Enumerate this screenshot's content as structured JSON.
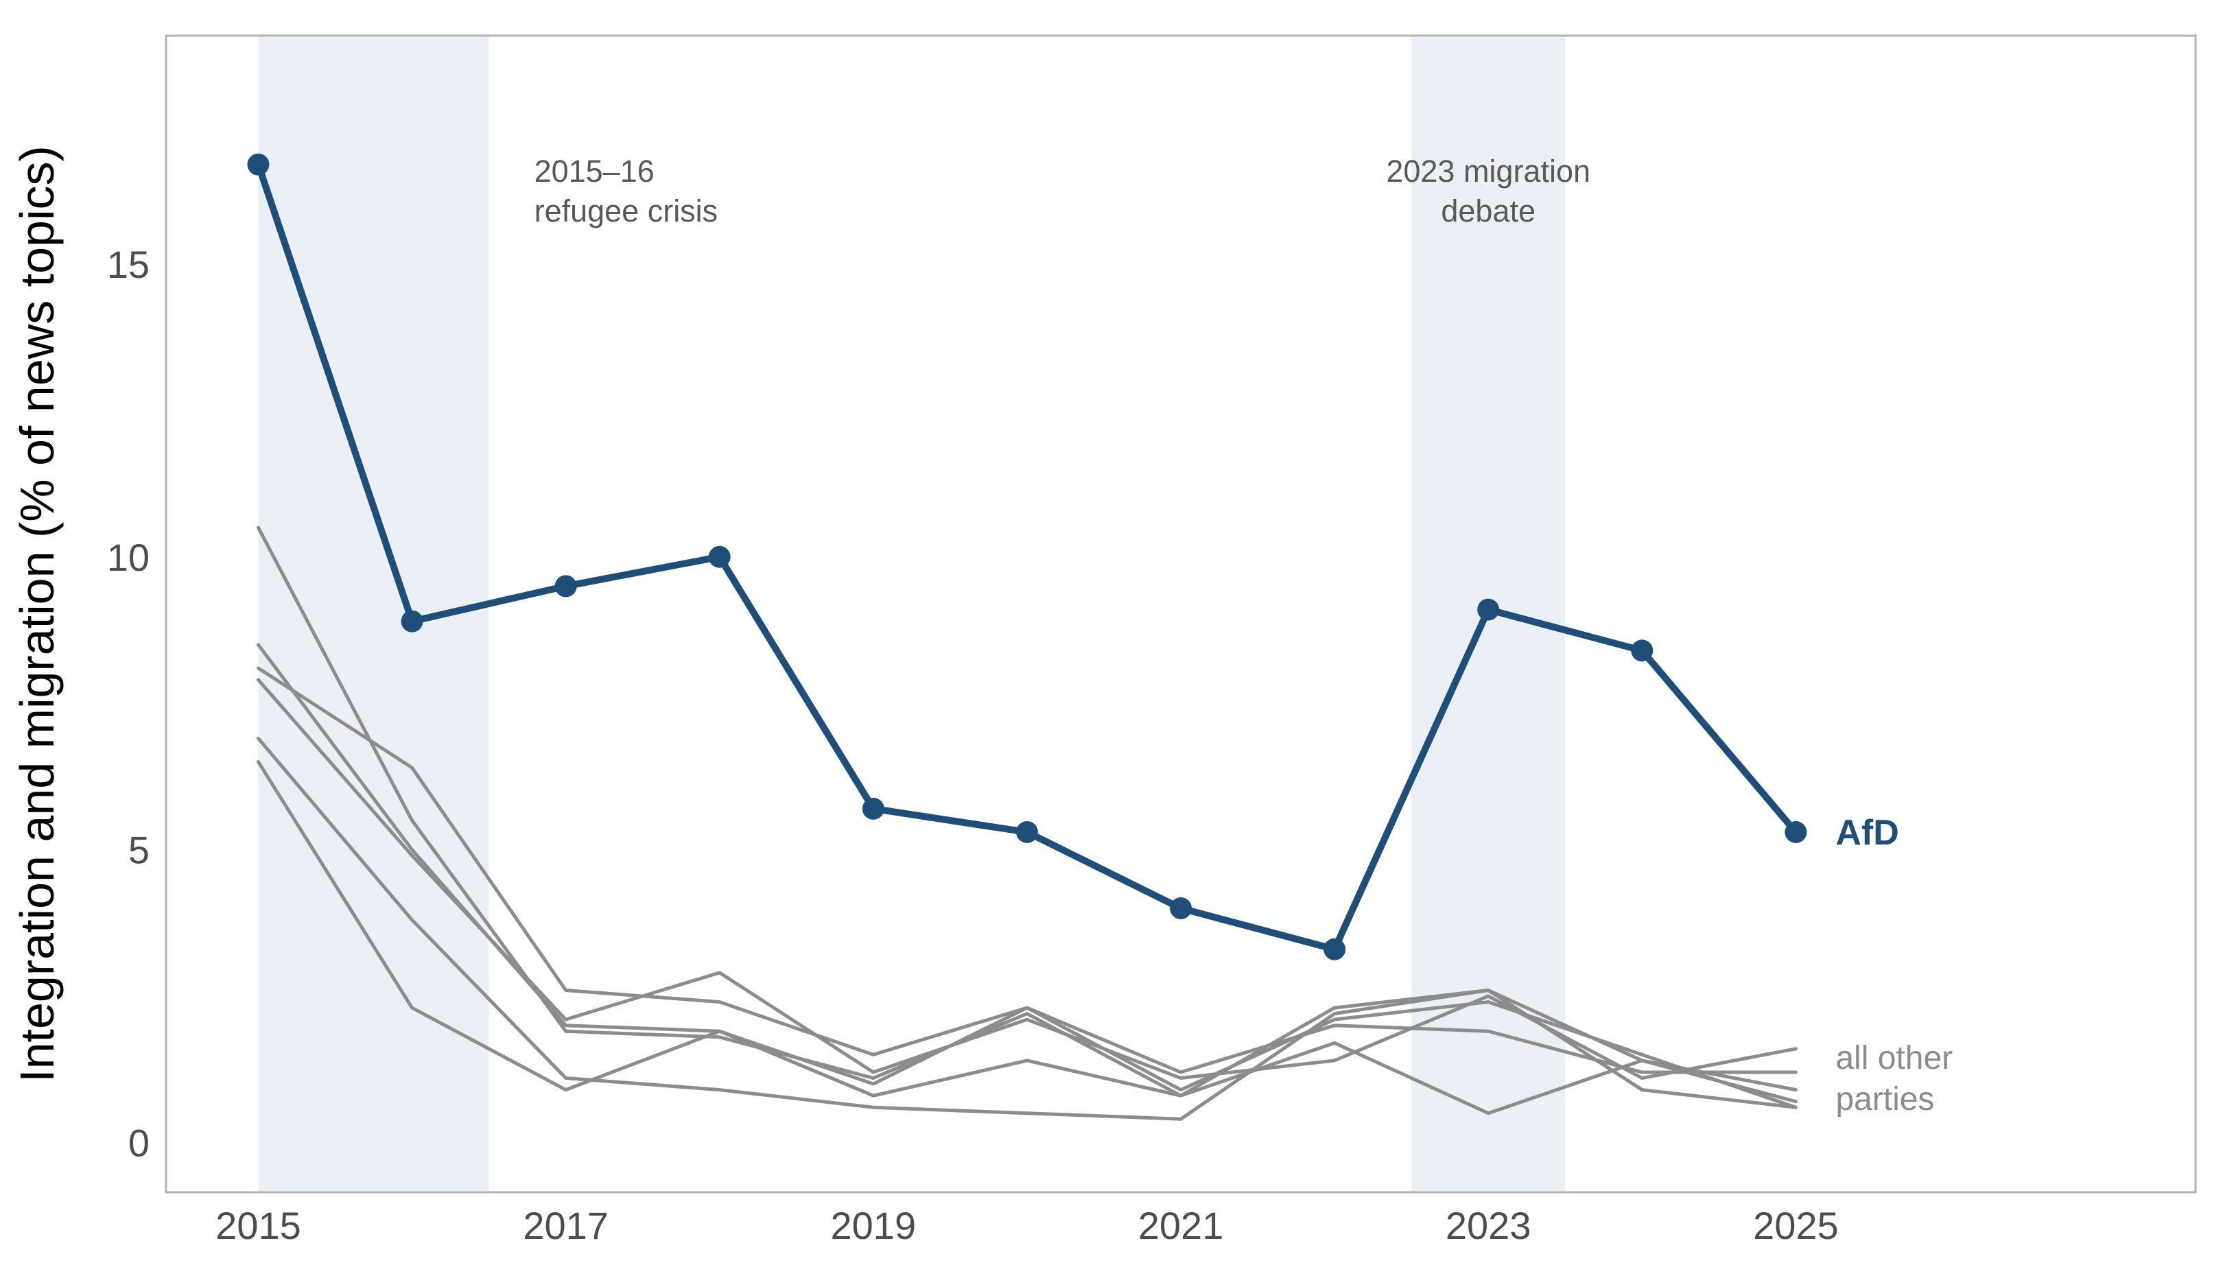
{
  "chart_data": {
    "type": "line",
    "xlabel": "",
    "ylabel": "Integration and migration (% of news topics)",
    "x": [
      2015,
      2016,
      2017,
      2018,
      2019,
      2020,
      2021,
      2022,
      2023,
      2024,
      2025
    ],
    "xticks": [
      2015,
      2017,
      2019,
      2021,
      2023,
      2025
    ],
    "yticks": [
      0,
      5,
      10,
      15
    ],
    "xlim": [
      2014.4,
      2027.6
    ],
    "ylim": [
      -0.85,
      18.9
    ],
    "grid": false,
    "shaded_periods": [
      {
        "start": 2015.0,
        "end": 2016.5,
        "label_lines": [
          "2015–16",
          "refugee crisis"
        ]
      },
      {
        "start": 2022.5,
        "end": 2023.5,
        "label_lines": [
          "2023 migration",
          "debate"
        ]
      }
    ],
    "colors": {
      "afd": "#1f4e79",
      "other": "#8c8c8c",
      "shade": "#ebf0f7",
      "frame": "#b3b3b3"
    },
    "highlight": {
      "name": "AfD",
      "values": [
        16.7,
        8.9,
        9.5,
        10.0,
        5.7,
        5.3,
        4.0,
        3.3,
        9.1,
        8.4,
        5.3
      ]
    },
    "others_label_lines": [
      "all other",
      "parties"
    ],
    "others": [
      {
        "values": [
          10.5,
          5.5,
          1.9,
          1.8,
          1.1,
          2.2,
          0.8,
          2.3,
          2.6,
          1.4,
          0.7
        ]
      },
      {
        "values": [
          8.5,
          5.0,
          2.0,
          1.9,
          1.0,
          2.3,
          0.9,
          2.1,
          2.4,
          1.5,
          0.6
        ]
      },
      {
        "values": [
          8.1,
          6.4,
          2.6,
          2.4,
          1.5,
          2.3,
          1.2,
          2.0,
          1.9,
          1.2,
          1.2
        ]
      },
      {
        "values": [
          7.9,
          4.9,
          2.1,
          2.9,
          1.2,
          2.1,
          1.1,
          1.4,
          2.5,
          1.1,
          1.6
        ]
      },
      {
        "values": [
          6.9,
          3.8,
          1.1,
          0.9,
          0.6,
          0.5,
          0.4,
          2.2,
          2.6,
          0.9,
          0.6
        ]
      },
      {
        "values": [
          6.5,
          2.3,
          0.9,
          1.9,
          0.8,
          1.4,
          0.8,
          1.7,
          0.5,
          1.4,
          0.9
        ]
      }
    ]
  }
}
